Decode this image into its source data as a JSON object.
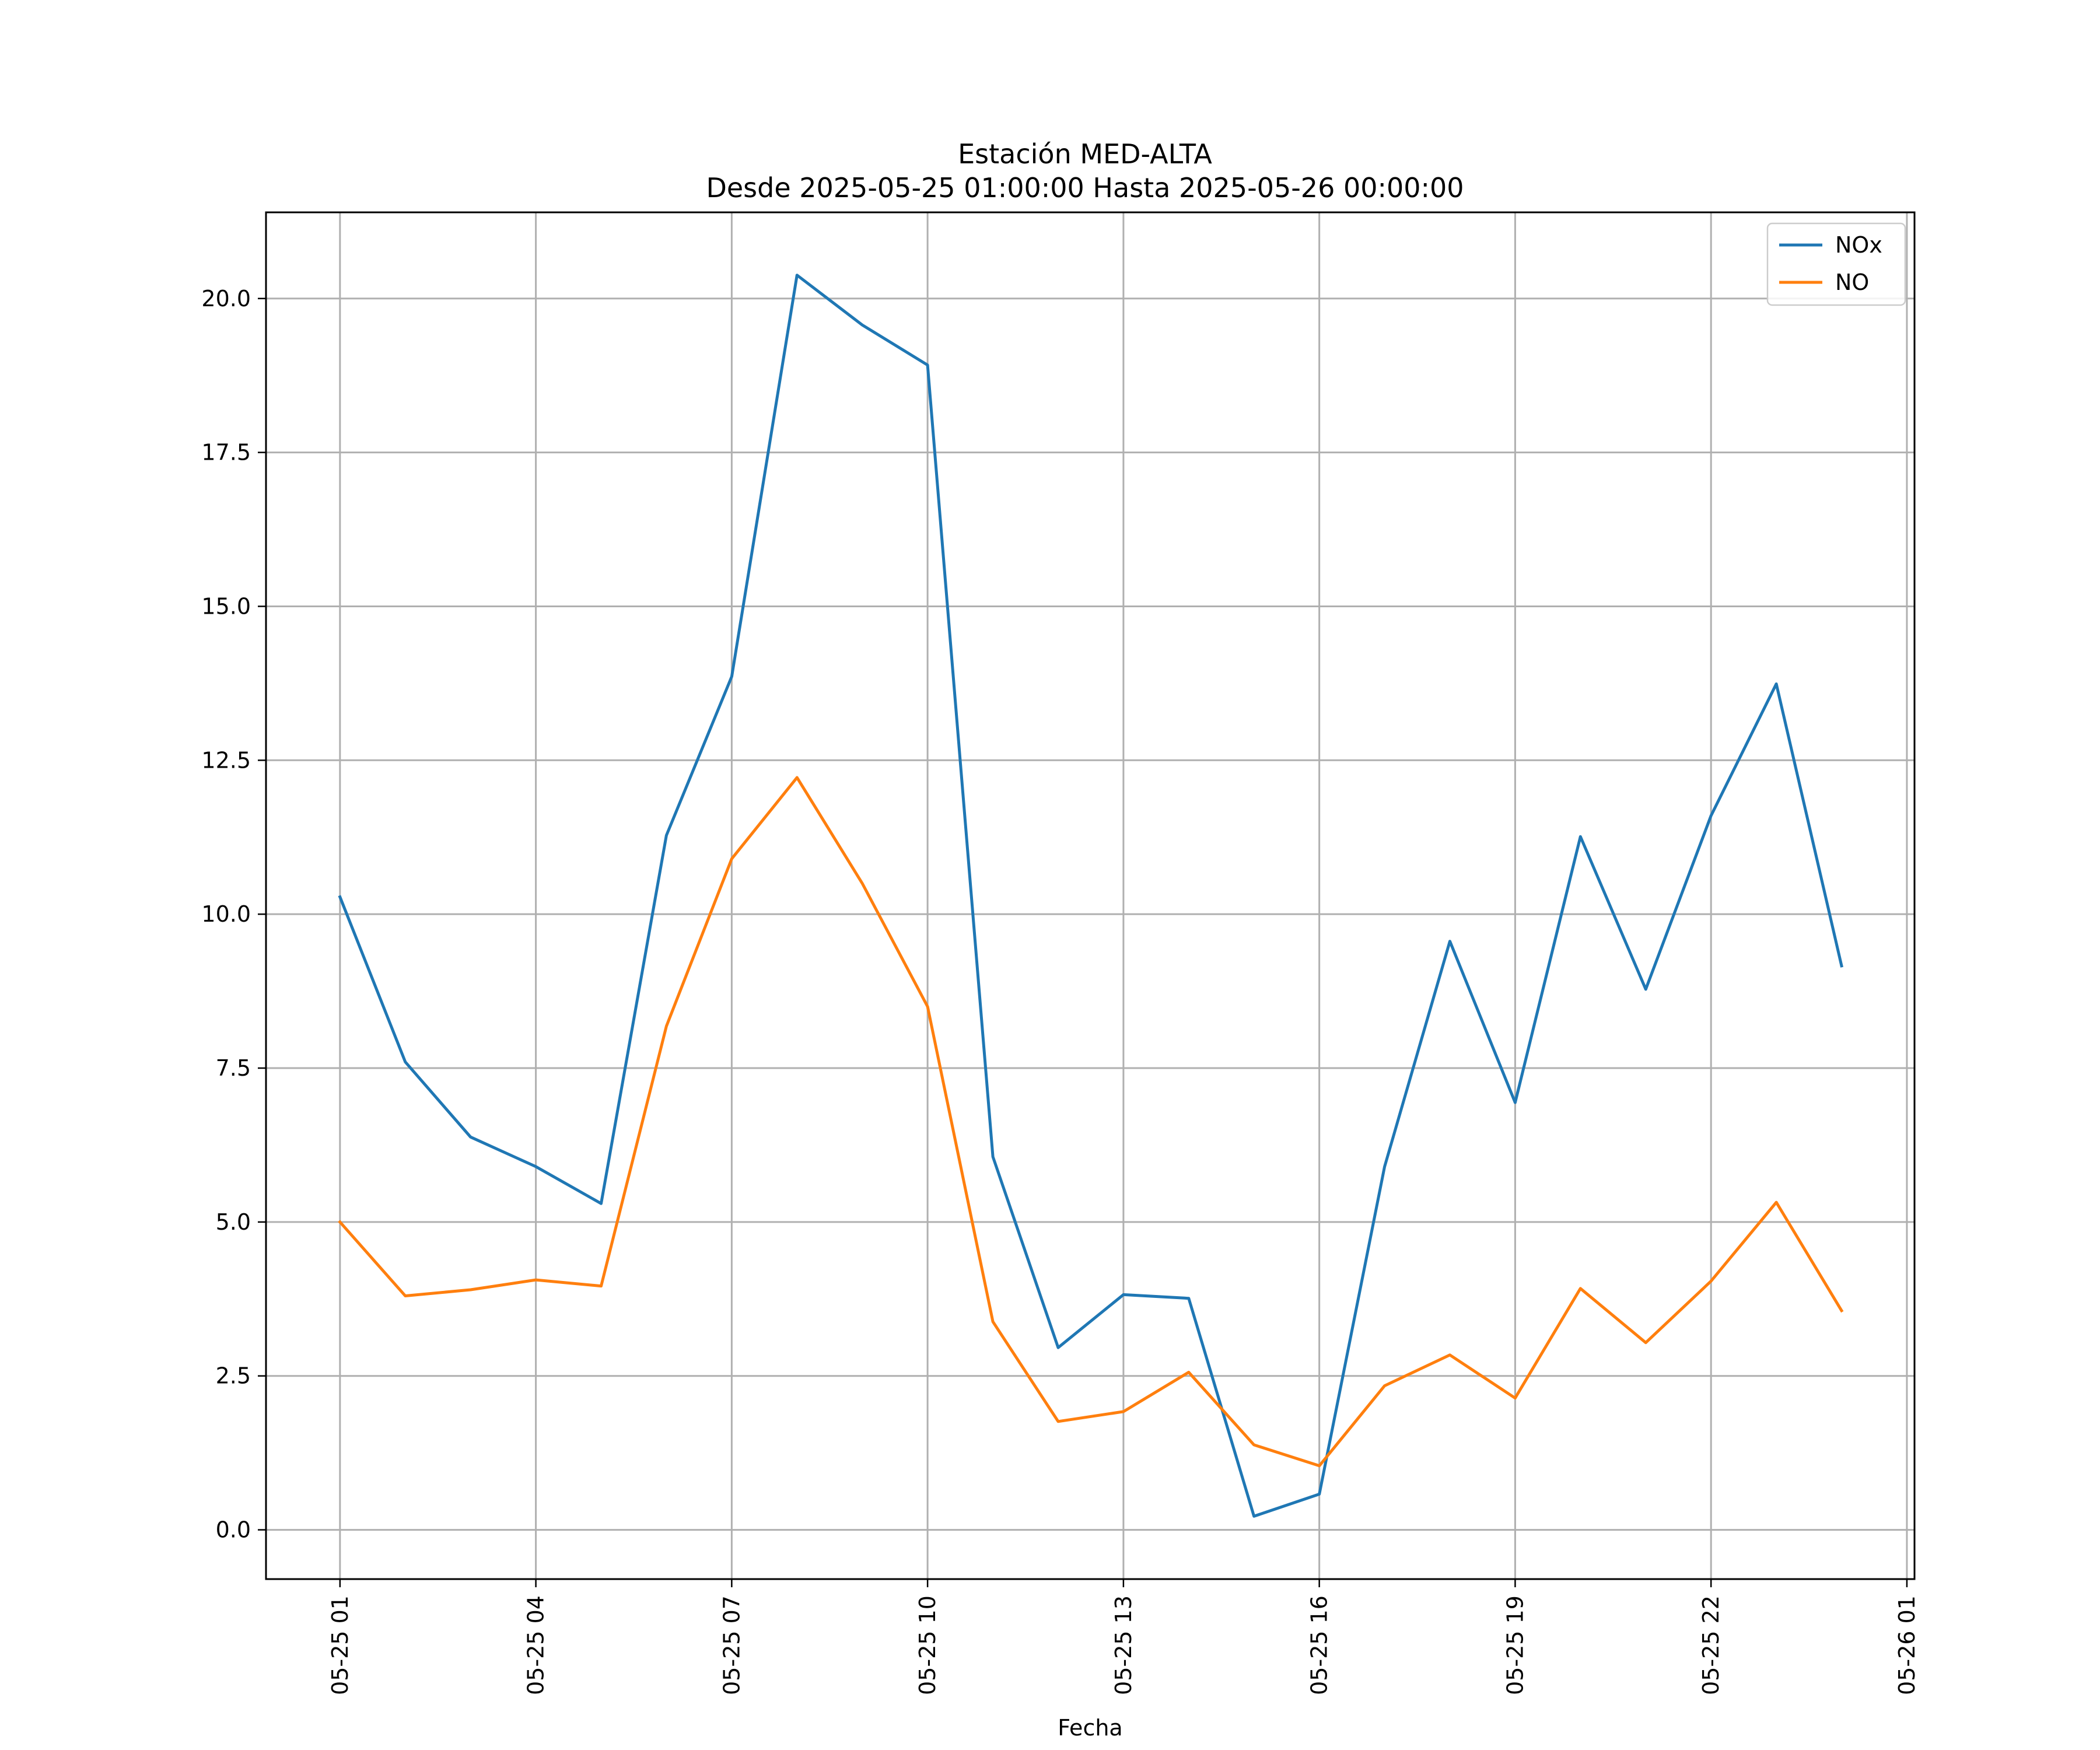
{
  "chart_data": {
    "type": "line",
    "title": "Estación MED-ALTA",
    "subtitle": "Desde 2025-05-25 01:00:00 Hasta 2025-05-26 00:00:00",
    "xlabel": "Fecha",
    "ylabel": "",
    "x": [
      "2025-05-25 01:00",
      "2025-05-25 02:00",
      "2025-05-25 03:00",
      "2025-05-25 04:00",
      "2025-05-25 05:00",
      "2025-05-25 06:00",
      "2025-05-25 07:00",
      "2025-05-25 08:00",
      "2025-05-25 09:00",
      "2025-05-25 10:00",
      "2025-05-25 11:00",
      "2025-05-25 12:00",
      "2025-05-25 13:00",
      "2025-05-25 14:00",
      "2025-05-25 15:00",
      "2025-05-25 16:00",
      "2025-05-25 17:00",
      "2025-05-25 18:00",
      "2025-05-25 19:00",
      "2025-05-25 20:00",
      "2025-05-25 21:00",
      "2025-05-25 22:00",
      "2025-05-25 23:00",
      "2025-05-26 00:00"
    ],
    "xlim": [
      "2025-05-24 23:52",
      "2025-05-26 01:07"
    ],
    "xticks": [
      {
        "value": "2025-05-25 01:00",
        "label": "05-25 01"
      },
      {
        "value": "2025-05-25 04:00",
        "label": "05-25 04"
      },
      {
        "value": "2025-05-25 07:00",
        "label": "05-25 07"
      },
      {
        "value": "2025-05-25 10:00",
        "label": "05-25 10"
      },
      {
        "value": "2025-05-25 13:00",
        "label": "05-25 13"
      },
      {
        "value": "2025-05-25 16:00",
        "label": "05-25 16"
      },
      {
        "value": "2025-05-25 19:00",
        "label": "05-25 19"
      },
      {
        "value": "2025-05-25 22:00",
        "label": "05-25 22"
      },
      {
        "value": "2025-05-26 01:00",
        "label": "05-26 01"
      }
    ],
    "ylim": [
      -0.8,
      21.4
    ],
    "yticks": [
      {
        "value": 0.0,
        "label": "0.0"
      },
      {
        "value": 2.5,
        "label": "2.5"
      },
      {
        "value": 5.0,
        "label": "5.0"
      },
      {
        "value": 7.5,
        "label": "7.5"
      },
      {
        "value": 10.0,
        "label": "10.0"
      },
      {
        "value": 12.5,
        "label": "12.5"
      },
      {
        "value": 15.0,
        "label": "15.0"
      },
      {
        "value": 17.5,
        "label": "17.5"
      },
      {
        "value": 20.0,
        "label": "20.0"
      }
    ],
    "grid": true,
    "legend_position": "top-right",
    "series": [
      {
        "name": "NOx",
        "color": "#1f77b4",
        "values": [
          10.28,
          7.6,
          6.38,
          5.9,
          5.3,
          11.28,
          13.86,
          20.38,
          19.57,
          18.92,
          6.06,
          2.96,
          3.82,
          3.76,
          0.22,
          0.58,
          5.9,
          9.56,
          6.94,
          11.26,
          8.78,
          11.6,
          13.74,
          9.16
        ]
      },
      {
        "name": "NO",
        "color": "#ff7f0e",
        "values": [
          5.0,
          3.8,
          3.9,
          4.06,
          3.96,
          8.18,
          10.9,
          12.22,
          10.5,
          8.5,
          3.38,
          1.76,
          1.92,
          2.56,
          1.38,
          1.04,
          2.34,
          2.84,
          2.14,
          3.92,
          3.04,
          4.04,
          5.32,
          3.56
        ]
      }
    ]
  }
}
